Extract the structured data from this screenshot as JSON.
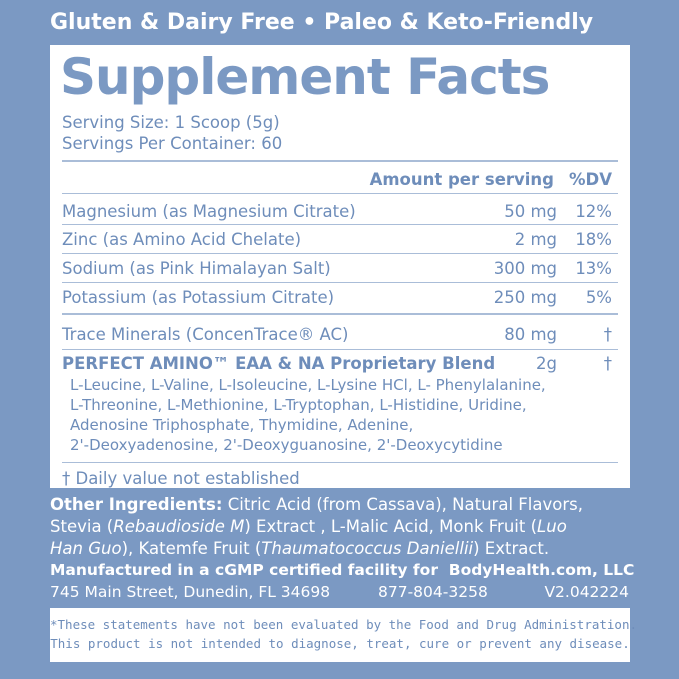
{
  "header": {
    "tagline": "Gluten & Dairy Free • Paleo & Keto-Friendly"
  },
  "panel": {
    "title": "Supplement Facts",
    "serving_size": "Serving Size: 1 Scoop (5g)",
    "servings_per_container": "Servings Per Container: 60",
    "column_headers": {
      "amount": "Amount per serving",
      "dv": "%DV"
    },
    "rows": [
      {
        "name": "Magnesium (as Magnesium Citrate)",
        "amount": "50 mg",
        "dv": "12%"
      },
      {
        "name": "Zinc (as Amino Acid Chelate)",
        "amount": "2 mg",
        "dv": "18%"
      },
      {
        "name": "Sodium (as Pink Himalayan Salt)",
        "amount": "300 mg",
        "dv": "13%"
      },
      {
        "name": "Potassium (as Potassium Citrate)",
        "amount": "250 mg",
        "dv": "5%"
      },
      {
        "name": "Trace Minerals (ConcenTrace® AC)",
        "amount": "80 mg",
        "dv": "†"
      },
      {
        "name": "PERFECT AMINO™ EAA & NA Proprietary Blend",
        "amount": "2g",
        "dv": "†"
      }
    ],
    "blend_ingredients": [
      "L-Leucine, L-Valine, L-Isoleucine, L-Lysine HCl, L- Phenylalanine,",
      "L-Threonine, L-Methionine, L-Tryptophan, L-Histidine, Uridine,",
      "Adenosine Triphosphate, Thymidine, Adenine,",
      "2'-Deoxyadenosine, 2'-Deoxyguanosine, 2'-Deoxycytidine"
    ],
    "footnote": "† Daily value not established"
  },
  "other_ingredients": [
    "Other Ingredients:",
    " Citric Acid (from Cassava), Natural Flavors,",
    "Stevia (",
    "Rebaudioside M",
    ") Extract , L-Malic Acid, Monk Fruit (",
    "Luo",
    "Han Guo",
    "), Katemfe Fruit (",
    "Thaumatococcus Daniellii",
    ") Extract."
  ],
  "manufacturer": {
    "statement": "Manufactured in a cGMP certified facility for  BodyHealth.com, LLC",
    "address": "745 Main Street, Dunedin, FL 34698",
    "phone": "877-804-3258",
    "version": "V2.042224"
  },
  "disclaimer": [
    "*These statements have not been evaluated by the Food and Drug Administration.",
    "This product is not intended to diagnose, treat, cure or prevent any disease."
  ]
}
